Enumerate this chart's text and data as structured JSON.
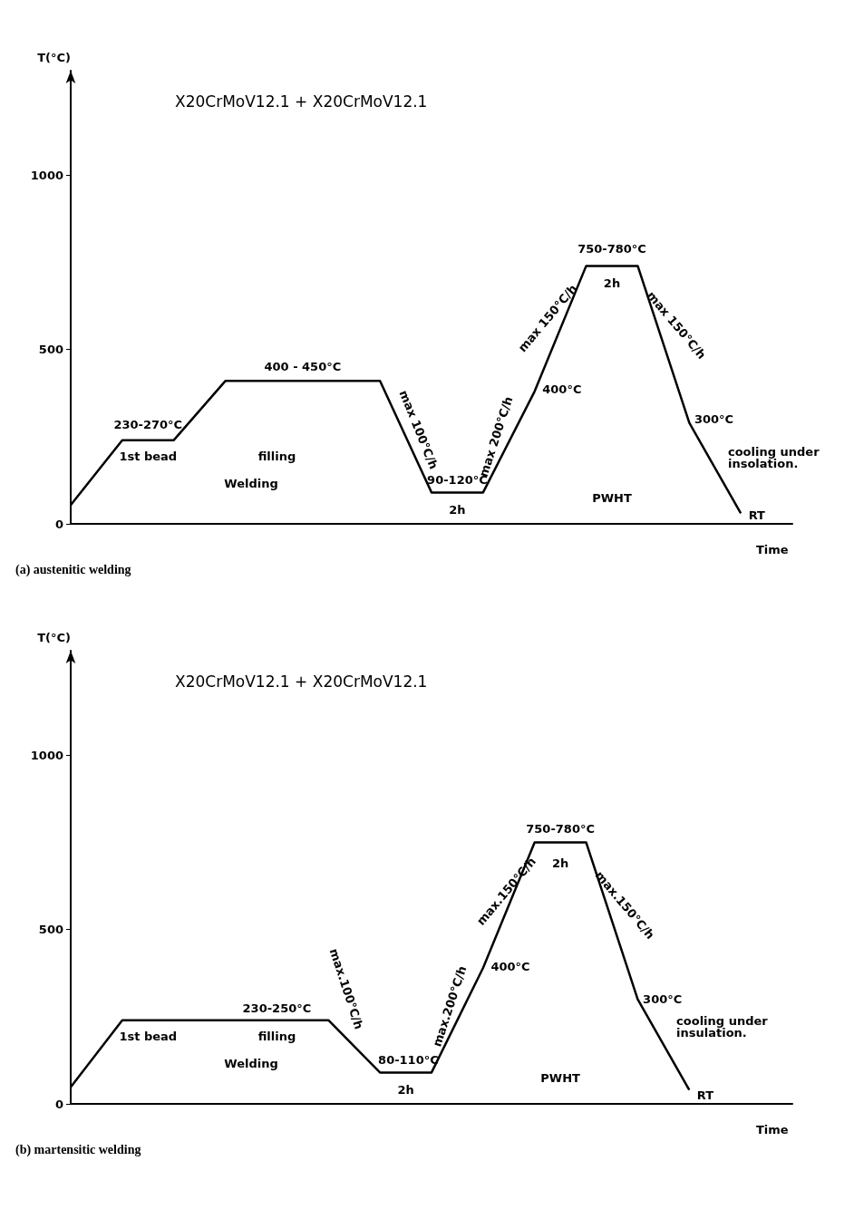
{
  "chart_data": [
    {
      "type": "line",
      "title": "X20CrMoV12.1 + X20CrMoV12.1",
      "subtitle": "(a) austenitic welding",
      "xlabel": "Time",
      "ylabel": "T(°C)",
      "categories": [
        null,
        null,
        null,
        null,
        null,
        null,
        null,
        null,
        null,
        null,
        null,
        null,
        null,
        null,
        null
      ],
      "series": [
        {
          "color": "#000000",
          "values": [
            54,
            240,
            240,
            410,
            410,
            410,
            410,
            90,
            90,
            380,
            740,
            740,
            290,
            30,
            null
          ]
        }
      ],
      "ylim": [
        0,
        1300
      ],
      "yticks": [
        0,
        500,
        1000
      ],
      "grid": false,
      "marker": "none",
      "tick_labels": "y",
      "annotations": [
        "230-270°C",
        "1st bead",
        "filling",
        "Welding",
        "400 - 450°C",
        "max 100°C/h",
        "90-120°C",
        "2h",
        "max 200°C/h",
        "400°C",
        "max 150°C/h",
        "750-780°C",
        "2h",
        "max 150°C/h",
        "300°C",
        "PWHT",
        "cooling under insolation.",
        "RT"
      ]
    },
    {
      "type": "line",
      "title": "X20CrMoV12.1 + X20CrMoV12.1",
      "subtitle": "(b) martensitic welding",
      "xlabel": "Time",
      "ylabel": "T(°C)",
      "categories": [
        null,
        null,
        null,
        null,
        null,
        null,
        null,
        null,
        null,
        null,
        null,
        null,
        null,
        null,
        null
      ],
      "series": [
        {
          "color": "#000000",
          "values": [
            48,
            240,
            240,
            240,
            240,
            240,
            90,
            90,
            390,
            750,
            750,
            300,
            40,
            null,
            null
          ]
        }
      ],
      "ylim": [
        0,
        1300
      ],
      "yticks": [
        0,
        500,
        1000
      ],
      "grid": false,
      "marker": "none",
      "tick_labels": "y",
      "annotations": [
        "230-250°C",
        "1st bead",
        "filling",
        "Welding",
        "max.100°C/h",
        "80-110°C",
        "2h",
        "max.200°C/h",
        "400°C",
        "max.150°C/h",
        "750-780°C",
        "2h",
        "max.150°C/h",
        "300°C",
        "cooling under insulation.",
        "PWHT",
        "RT"
      ]
    }
  ]
}
